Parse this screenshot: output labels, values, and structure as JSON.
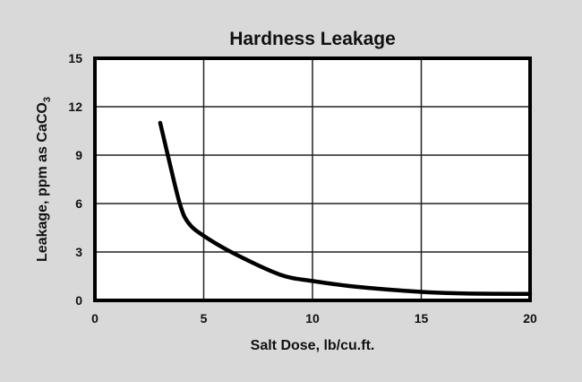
{
  "chart_data": {
    "type": "line",
    "title": "Hardness Leakage",
    "xlabel": "Salt Dose, lb/cu.ft.",
    "ylabel_main": "Leakage, ppm as CaCO",
    "ylabel_sub": "3",
    "xlim": [
      0,
      20
    ],
    "ylim": [
      0,
      15
    ],
    "xticks": [
      0,
      5,
      10,
      15,
      20
    ],
    "yticks": [
      0,
      3,
      6,
      9,
      12,
      15
    ],
    "grid": true,
    "colors": {
      "background": "#d9d9d9",
      "plot": "#ffffff",
      "line": "#000000"
    },
    "series": [
      {
        "x": [
          3.0,
          3.35,
          3.9,
          4.3,
          5.0,
          6.4,
          8.5,
          10.0,
          12.0,
          15.0,
          17.0,
          20.0
        ],
        "y": [
          11.0,
          9.0,
          6.0,
          4.8,
          4.0,
          2.9,
          1.6,
          1.2,
          0.85,
          0.53,
          0.43,
          0.4
        ]
      }
    ]
  }
}
